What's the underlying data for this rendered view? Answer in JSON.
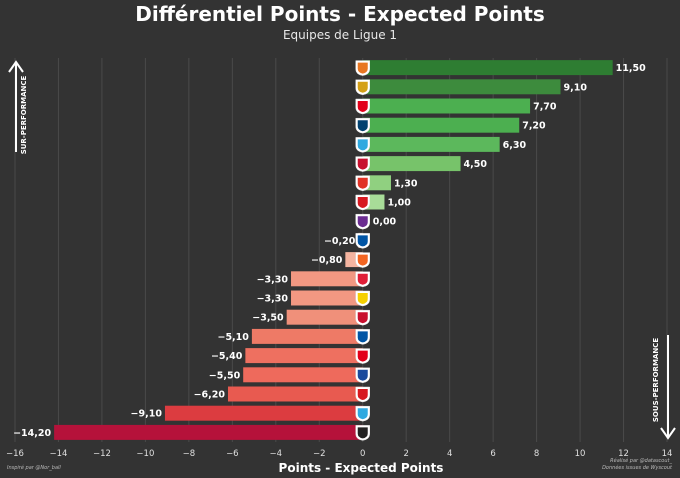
{
  "title": "Différentiel Points - Expected Points",
  "subtitle": "Equipes de Ligue 1",
  "labels": {
    "overperformance": "SUR-PERFORMANCE",
    "underperformance": "SOUS-PERFORMANCE"
  },
  "credits": {
    "left": "Inspiré par @Nor_ball",
    "right_line1": "Réalisé par @datascout_",
    "right_line2": "Données issues de Wyscout"
  },
  "chart_data": {
    "type": "bar",
    "orientation": "horizontal",
    "xlabel": "Points - Expected Points",
    "xlim": [
      -16,
      14
    ],
    "xticks": [
      -16,
      -14,
      -12,
      -10,
      -8,
      -6,
      -4,
      -2,
      0,
      2,
      4,
      6,
      8,
      10,
      12,
      14
    ],
    "grid": true,
    "values": [
      11.5,
      9.1,
      7.7,
      7.2,
      6.3,
      4.5,
      1.3,
      1.0,
      0.0,
      -0.2,
      -0.8,
      -3.3,
      -3.3,
      -3.5,
      -5.1,
      -5.4,
      -5.5,
      -6.2,
      -9.1,
      -14.2
    ],
    "value_labels": [
      "11,50",
      "9,10",
      "7,70",
      "7,20",
      "6,30",
      "4,50",
      "1,30",
      "1,00",
      "0,00",
      "−0,20",
      "−0,80",
      "−3,30",
      "−3,30",
      "−3,50",
      "−5,10",
      "−5,40",
      "−5,50",
      "−6,20",
      "−9,10",
      "−14,20"
    ],
    "colors": [
      "#2e7d32",
      "#3d8b3d",
      "#4caf50",
      "#4caf50",
      "#5cb85c",
      "#77c36a",
      "#90d080",
      "#a8dc98",
      "#cccccc",
      "#f4c4b0",
      "#f4b4a0",
      "#f29882",
      "#f29882",
      "#f0907a",
      "#ee7a66",
      "#ee7060",
      "#ee6a5c",
      "#e85a50",
      "#dc3c40",
      "#b5123a"
    ],
    "team_icons": [
      "lorient-crest-icon",
      "lens-crest-icon",
      "monaco-crest-icon",
      "psg-crest-icon",
      "marseille-crest-icon",
      "clermont-crest-icon",
      "rennes-crest-icon",
      "reims-crest-icon",
      "toulouse-crest-icon",
      "troyes-crest-icon",
      "montpellier-crest-icon",
      "lille-crest-icon",
      "nantes-crest-icon",
      "nice-crest-icon",
      "auxerre-crest-icon",
      "ajaccio-crest-icon",
      "lyon-crest-icon",
      "brest-crest-icon",
      "strasbourg-crest-icon",
      "angers-crest-icon"
    ],
    "icon_colors": [
      "#e87722",
      "#d4a017",
      "#e2001a",
      "#004170",
      "#2fa9e0",
      "#c8102e",
      "#e13327",
      "#d71920",
      "#6b2c91",
      "#0055a5",
      "#f26522",
      "#e01e37",
      "#f5d000",
      "#c8102e",
      "#0055a5",
      "#e2001a",
      "#1a4a9c",
      "#d71920",
      "#2fa9e0",
      "#222222"
    ]
  }
}
